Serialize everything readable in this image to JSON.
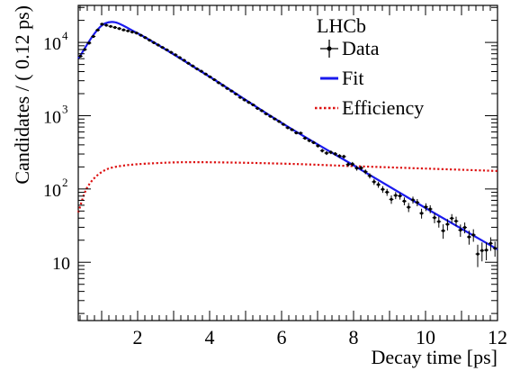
{
  "chart_data": {
    "type": "scatter",
    "xlabel": "Decay time [ps]",
    "ylabel": "Candidates / ( 0.12 ps)",
    "xlim": [
      0.35,
      12.0
    ],
    "ylim": [
      1.6,
      32000
    ],
    "yscale": "log",
    "x_ticks": [
      "2",
      "4",
      "6",
      "8",
      "10",
      "12"
    ],
    "y_tick_labels": [
      {
        "base": "10",
        "exp": "",
        "value": 10
      },
      {
        "base": "10",
        "exp": "2",
        "value": 100
      },
      {
        "base": "10",
        "exp": "3",
        "value": 1000
      },
      {
        "base": "10",
        "exp": "4",
        "value": 10000
      }
    ],
    "experiment_label": "LHCb",
    "legend": {
      "position": "top-right",
      "entries": [
        {
          "label": "Data",
          "style": "markers"
        },
        {
          "label": "Fit",
          "style": "solid",
          "color": "#1a1aee"
        },
        {
          "label": "Efficiency",
          "style": "dotted",
          "color": "#dd1111"
        }
      ]
    },
    "series": [
      {
        "name": "Data",
        "color": "#000000",
        "bin_width": 0.12,
        "x_start": 0.41,
        "points": [
          {
            "x": 0.41,
            "y": 6500
          },
          {
            "x": 1.0,
            "y": 17800
          },
          {
            "x": 2.0,
            "y": 13300
          },
          {
            "x": 3.0,
            "y": 7000
          },
          {
            "x": 4.0,
            "y": 3400
          },
          {
            "x": 5.0,
            "y": 1620
          },
          {
            "x": 6.0,
            "y": 790
          },
          {
            "x": 7.0,
            "y": 380
          },
          {
            "x": 8.0,
            "y": 220
          },
          {
            "x": 9.0,
            "y": 92
          },
          {
            "x": 10.0,
            "y": 48
          },
          {
            "x": 11.0,
            "y": 27
          },
          {
            "x": 11.95,
            "y": 13
          }
        ]
      },
      {
        "name": "Fit",
        "color": "#1a1aee",
        "points": [
          {
            "x": 0.35,
            "y": 6000
          },
          {
            "x": 1.1,
            "y": 18200
          },
          {
            "x": 2.0,
            "y": 13300
          },
          {
            "x": 4.0,
            "y": 3400
          },
          {
            "x": 6.0,
            "y": 800
          },
          {
            "x": 8.0,
            "y": 210
          },
          {
            "x": 10.0,
            "y": 55
          },
          {
            "x": 12.0,
            "y": 15
          }
        ]
      },
      {
        "name": "Efficiency",
        "color": "#dd1111",
        "points": [
          {
            "x": 0.35,
            "y": 48
          },
          {
            "x": 0.6,
            "y": 105
          },
          {
            "x": 1.0,
            "y": 170
          },
          {
            "x": 1.5,
            "y": 205
          },
          {
            "x": 2.5,
            "y": 225
          },
          {
            "x": 3.7,
            "y": 232
          },
          {
            "x": 6.0,
            "y": 222
          },
          {
            "x": 8.0,
            "y": 205
          },
          {
            "x": 10.0,
            "y": 190
          },
          {
            "x": 12.0,
            "y": 176
          }
        ]
      }
    ]
  }
}
